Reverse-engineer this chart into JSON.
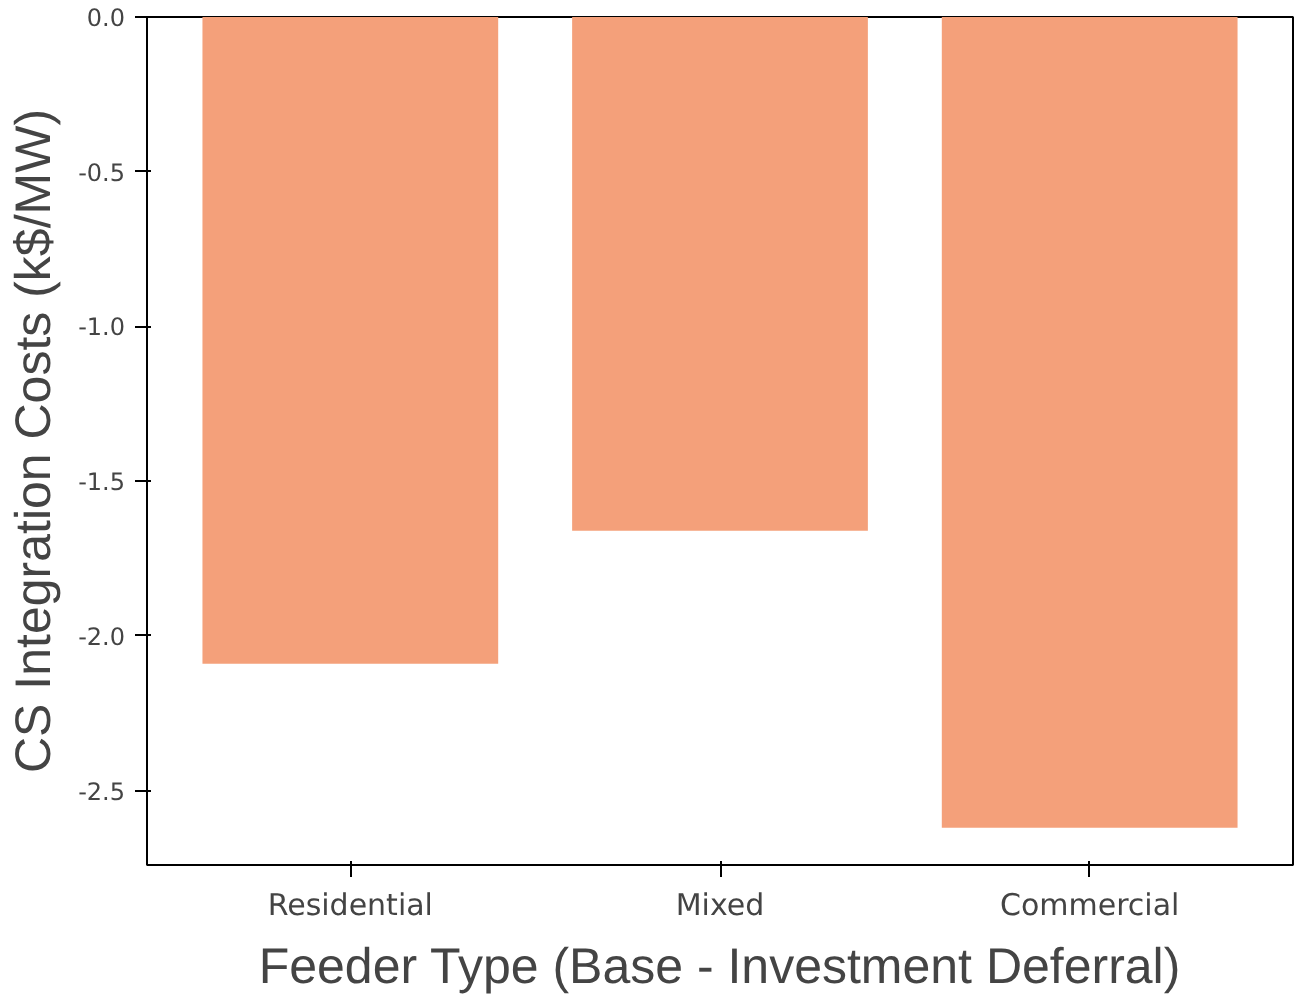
{
  "chart_data": {
    "type": "bar",
    "xlabel": "Feeder Type (Base - Investment Deferral)",
    "ylabel": "CS Integration Costs (k$/MW)",
    "categories": [
      "Residential",
      "Mixed",
      "Commercial"
    ],
    "values": [
      -2.09,
      -1.66,
      -2.62
    ],
    "color": "#f4a07a",
    "ylim": [
      -2.74,
      0.0
    ],
    "yticks": [
      {
        "value": 0,
        "label": "0.0"
      },
      -0.5,
      {
        "value": -1,
        "label": "-1.0"
      },
      -1.5,
      {
        "value": -2,
        "label": "-2.0"
      },
      -2.5
    ],
    "grid": false
  }
}
